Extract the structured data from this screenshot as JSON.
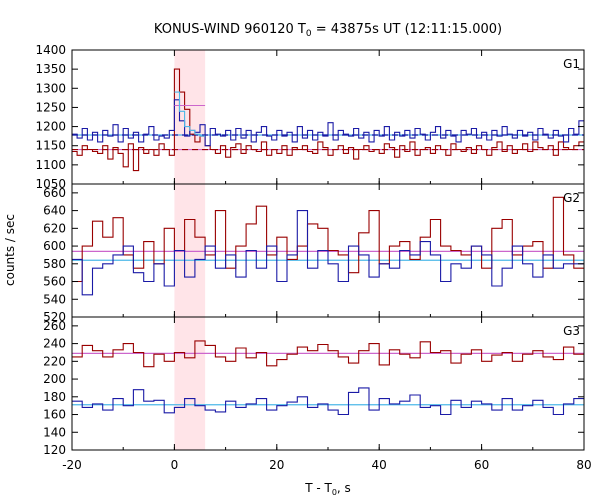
{
  "chart_data": {
    "type": "line",
    "title_pre": "KONUS-WIND 960120 T",
    "title_sub": "0",
    "title_post": " = 43875s UT (12:11:15.000)",
    "xlabel_pre": "T - T",
    "xlabel_sub": "0",
    "xlabel_post": ", s",
    "ylabel": "counts / sec",
    "xlim": [
      -20,
      80
    ],
    "xticks": [
      "-20",
      "0",
      "20",
      "40",
      "60",
      "80"
    ],
    "highlight_interval": [
      0,
      6
    ],
    "colors": {
      "dark_red": "#990000",
      "dark_blue": "#1a1aa6",
      "cyan": "#4db8e8",
      "violet": "#cc66cc",
      "highlight": "#ffe4e8"
    },
    "panels": [
      {
        "label": "G1",
        "ylim": [
          1050,
          1400
        ],
        "yticks": [
          "1050",
          "1100",
          "1150",
          "1200",
          "1250",
          "1300",
          "1350",
          "1400"
        ],
        "bin_step": 1,
        "x_start": -20,
        "series": [
          {
            "color": "dark_red",
            "values": [
              1135,
              1125,
              1150,
              1140,
              1135,
              1130,
              1150,
              1115,
              1145,
              1130,
              1095,
              1155,
              1085,
              1145,
              1130,
              1140,
              1125,
              1155,
              1140,
              1125,
              1350,
              1290,
              1245,
              1180,
              1160,
              1175,
              1150,
              1140,
              1130,
              1150,
              1120,
              1145,
              1155,
              1130,
              1150,
              1140,
              1135,
              1160,
              1125,
              1140,
              1130,
              1150,
              1125,
              1145,
              1140,
              1150,
              1135,
              1130,
              1160,
              1145,
              1125,
              1140,
              1150,
              1130,
              1145,
              1115,
              1140,
              1150,
              1135,
              1140,
              1130,
              1155,
              1145,
              1120,
              1150,
              1135,
              1160,
              1125,
              1140,
              1145,
              1130,
              1150,
              1140,
              1125,
              1155,
              1140,
              1135,
              1145,
              1130,
              1150,
              1140,
              1125,
              1145,
              1160,
              1135,
              1150,
              1130,
              1140,
              1155,
              1135,
              1160,
              1145,
              1140,
              1150,
              1125,
              1160,
              1145,
              1140,
              1150,
              1160
            ]
          },
          {
            "color": "dark_blue",
            "values": [
              1180,
              1170,
              1195,
              1165,
              1185,
              1160,
              1190,
              1175,
              1205,
              1160,
              1195,
              1170,
              1185,
              1160,
              1180,
              1200,
              1165,
              1175,
              1170,
              1190,
              1270,
              1215,
              1175,
              1190,
              1185,
              1205,
              1150,
              1195,
              1180,
              1175,
              1190,
              1165,
              1195,
              1170,
              1190,
              1160,
              1185,
              1200,
              1175,
              1165,
              1190,
              1175,
              1185,
              1160,
              1200,
              1170,
              1190,
              1165,
              1185,
              1175,
              1210,
              1165,
              1190,
              1180,
              1175,
              1195,
              1170,
              1185,
              1160,
              1190,
              1175,
              1200,
              1165,
              1185,
              1175,
              1190,
              1170,
              1195,
              1180,
              1165,
              1185,
              1200,
              1170,
              1190,
              1175,
              1160,
              1190,
              1180,
              1195,
              1170,
              1185,
              1165,
              1190,
              1175,
              1200,
              1180,
              1170,
              1190,
              1175,
              1185,
              1165,
              1195,
              1180,
              1170,
              1190,
              1175,
              1160,
              1195,
              1180,
              1215
            ]
          }
        ],
        "coarse": {
          "color": "violet",
          "x_start": 0,
          "bin_step": 6,
          "values": [
            1255
          ]
        },
        "coarse2": {
          "color": "cyan",
          "x_start": 0,
          "bin_step": 1,
          "values": [
            1290,
            1240,
            1200,
            1190,
            1180,
            1175
          ]
        },
        "bg_lines": [
          {
            "color": "cyan",
            "value": 1178,
            "dashed": false
          },
          {
            "color": "dark_blue",
            "value": 1178,
            "dashed": true
          },
          {
            "color": "violet",
            "value": 1140,
            "dashed": false
          },
          {
            "color": "dark_red",
            "value": 1140,
            "dashed": true
          }
        ]
      },
      {
        "label": "G2",
        "ylim": [
          520,
          670
        ],
        "yticks": [
          "520",
          "540",
          "560",
          "580",
          "600",
          "620",
          "640",
          "660"
        ],
        "bin_step": 2,
        "x_start": -20,
        "series": [
          {
            "color": "dark_red",
            "values": [
              560,
              600,
              628,
              610,
              632,
              590,
              575,
              605,
              580,
              620,
              595,
              630,
              610,
              590,
              640,
              575,
              600,
              625,
              645,
              590,
              610,
              585,
              600,
              625,
              620,
              595,
              590,
              570,
              615,
              640,
              580,
              600,
              605,
              585,
              610,
              630,
              600,
              595,
              590,
              600,
              575,
              620,
              630,
              590,
              600,
              605,
              575,
              655,
              590,
              575
            ]
          },
          {
            "color": "dark_blue",
            "values": [
              585,
              545,
              575,
              580,
              590,
              600,
              570,
              560,
              580,
              555,
              595,
              565,
              585,
              600,
              575,
              590,
              565,
              595,
              575,
              600,
              560,
              590,
              640,
              575,
              595,
              580,
              560,
              600,
              590,
              565,
              580,
              575,
              595,
              590,
              605,
              590,
              560,
              580,
              575,
              600,
              590,
              555,
              575,
              600,
              580,
              565,
              590,
              575,
              580,
              580
            ]
          }
        ],
        "bg_lines": [
          {
            "color": "violet",
            "value": 594,
            "dashed": false
          },
          {
            "color": "cyan",
            "value": 584,
            "dashed": false
          }
        ]
      },
      {
        "label": "G3",
        "ylim": [
          120,
          270
        ],
        "yticks": [
          "120",
          "140",
          "160",
          "180",
          "200",
          "220",
          "240",
          "260"
        ],
        "bin_step": 2,
        "x_start": -20,
        "series": [
          {
            "color": "dark_red",
            "values": [
              225,
              238,
              232,
              225,
              233,
              240,
              230,
              214,
              228,
              220,
              230,
              224,
              243,
              238,
              225,
              220,
              235,
              224,
              230,
              215,
              222,
              228,
              236,
              232,
              239,
              232,
              225,
              218,
              232,
              240,
              216,
              233,
              228,
              224,
              242,
              230,
              232,
              218,
              228,
              233,
              220,
              227,
              230,
              220,
              228,
              232,
              225,
              222,
              236,
              228
            ]
          },
          {
            "color": "dark_blue",
            "values": [
              175,
              168,
              172,
              165,
              178,
              170,
              188,
              175,
              176,
              162,
              168,
              178,
              170,
              165,
              163,
              175,
              168,
              172,
              178,
              165,
              170,
              174,
              180,
              168,
              172,
              165,
              160,
              185,
              190,
              165,
              178,
              172,
              175,
              182,
              168,
              170,
              160,
              176,
              168,
              175,
              172,
              165,
              178,
              165,
              170,
              176,
              168,
              160,
              172,
              178
            ]
          }
        ],
        "bg_lines": [
          {
            "color": "violet",
            "value": 229,
            "dashed": false
          },
          {
            "color": "cyan",
            "value": 171,
            "dashed": false
          }
        ]
      }
    ]
  }
}
